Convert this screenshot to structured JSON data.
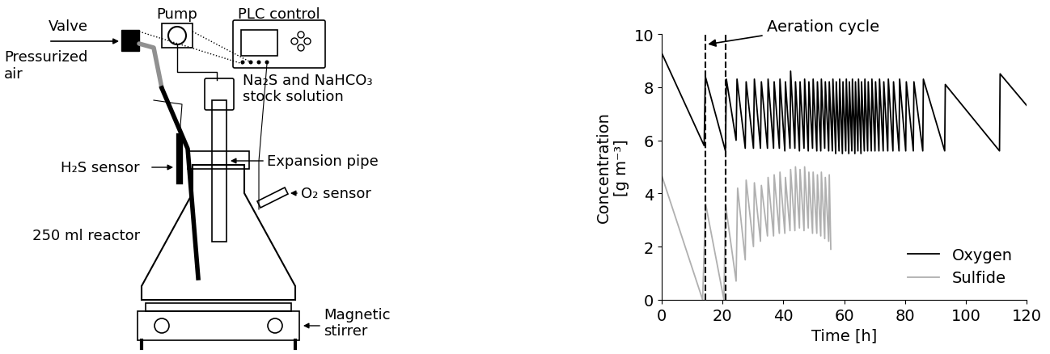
{
  "diagram": {
    "labels": {
      "plc": "PLC control",
      "pump": "Pump",
      "valve": "Valve",
      "air": "Pressurized\nair",
      "stock": "Na₂S and NaHCO₃\nstock solution",
      "h2s": "H₂S sensor",
      "pipe": "Expansion pipe",
      "o2": "O₂ sensor",
      "reactor": "250 ml reactor",
      "stirrer": "Magnetic\nstirrer"
    }
  },
  "chart_data": {
    "type": "line",
    "ylabel": "Concentration\n[g m⁻³]",
    "xlabel": "Time [h]",
    "xlim": [
      0,
      120
    ],
    "xticks": [
      0,
      20,
      40,
      60,
      80,
      100,
      120
    ],
    "ylim": [
      0,
      10
    ],
    "yticks": [
      0,
      2,
      4,
      6,
      8,
      10
    ],
    "legend": "lower right",
    "annotation": {
      "text": "Aeration cycle",
      "x": [
        14.5,
        21
      ]
    },
    "series": [
      {
        "name": "Oxygen",
        "color": "#000000",
        "x": [
          0,
          14,
          14.4,
          21,
          21.3,
          24.5,
          24.8,
          27.5,
          27.8,
          30.2,
          30.5,
          32.5,
          32.8,
          34.8,
          35.0,
          36.8,
          37.0,
          38.7,
          38.9,
          40.5,
          40.7,
          42.2,
          42.4,
          43.8,
          44.0,
          45.3,
          45.5,
          46.8,
          47.0,
          48.2,
          48.4,
          49.6,
          49.8,
          51.0,
          51.2,
          52.3,
          52.5,
          53.6,
          53.8,
          54.9,
          55.1,
          56.1,
          56.3,
          57.2,
          57.4,
          58.3,
          58.5,
          59.4,
          59.6,
          60.5,
          60.7,
          61.5,
          61.7,
          62.5,
          62.7,
          63.5,
          63.7,
          64.5,
          64.7,
          65.5,
          65.7,
          66.6,
          66.8,
          67.7,
          67.9,
          68.9,
          69.1,
          70.1,
          70.3,
          71.4,
          71.6,
          72.8,
          73.0,
          74.3,
          74.5,
          76.0,
          76.2,
          78.0,
          78.2,
          80.2,
          80.4,
          82.7,
          82.9,
          85.8,
          86.0,
          93.0,
          93.2,
          111.0,
          111.2,
          120.0
        ],
        "values": [
          9.3,
          5.8,
          8.4,
          5.6,
          8.3,
          6.0,
          8.3,
          5.7,
          8.2,
          5.7,
          8.3,
          5.7,
          8.2,
          5.7,
          8.3,
          5.7,
          8.2,
          5.7,
          8.3,
          5.6,
          8.2,
          5.7,
          8.6,
          5.7,
          8.2,
          5.6,
          8.2,
          5.7,
          8.3,
          5.6,
          8.2,
          5.7,
          8.3,
          5.6,
          8.2,
          5.6,
          8.3,
          5.7,
          8.2,
          5.6,
          8.2,
          5.6,
          8.3,
          5.5,
          8.2,
          5.6,
          8.3,
          5.5,
          8.2,
          5.6,
          8.3,
          5.5,
          8.2,
          5.6,
          8.3,
          5.5,
          8.2,
          5.6,
          8.3,
          5.5,
          8.2,
          5.6,
          8.3,
          5.6,
          8.2,
          5.6,
          8.3,
          5.6,
          8.2,
          5.6,
          8.3,
          5.6,
          8.2,
          5.6,
          8.3,
          5.6,
          8.2,
          5.6,
          8.3,
          5.6,
          8.2,
          5.6,
          8.2,
          5.6,
          8.3,
          5.6,
          8.1,
          5.6,
          8.5,
          7.3
        ]
      },
      {
        "name": "Sulfide",
        "color": "#b0b0b0",
        "x": [
          0,
          13.5,
          14.5,
          20.5,
          21.0,
          24.5,
          25.0,
          27.5,
          27.8,
          30.2,
          30.5,
          32.5,
          32.8,
          34.8,
          35.0,
          36.8,
          37.0,
          38.7,
          38.9,
          40.5,
          40.7,
          42.2,
          42.4,
          43.8,
          44.0,
          45.3,
          45.5,
          46.8,
          47.0,
          48.2,
          48.4,
          49.6,
          49.8,
          51.0,
          51.2,
          52.3,
          52.5,
          53.6,
          53.8,
          54.9,
          55.1,
          55.6
        ],
        "values": [
          4.7,
          0,
          3.6,
          0,
          3.6,
          0.7,
          4.2,
          1.5,
          4.5,
          2.0,
          4.4,
          2.2,
          4.3,
          2.4,
          4.6,
          2.4,
          4.7,
          2.5,
          4.8,
          2.5,
          4.6,
          2.6,
          4.9,
          2.6,
          5.0,
          2.7,
          4.9,
          2.6,
          5.0,
          2.7,
          4.8,
          2.5,
          4.8,
          2.5,
          4.7,
          2.4,
          4.8,
          2.3,
          4.6,
          2.2,
          4.7,
          1.9
        ]
      }
    ]
  }
}
